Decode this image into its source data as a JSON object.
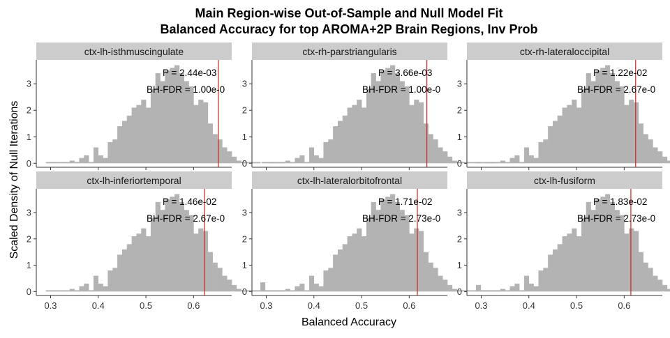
{
  "chart_data": {
    "type": "histogram",
    "title": [
      "Main Region-wise Out-of-Sample and Null Model Fit",
      "Balanced Accuracy for top AROMA+2P Brain Regions, Inv Prob"
    ],
    "xlabel": "Balanced Accuracy",
    "ylabel": "Scaled Density of Null Iterations",
    "xlim": [
      0.27,
      0.68
    ],
    "ylim": [
      -0.15,
      3.9
    ],
    "x_ticks": [
      0.3,
      0.4,
      0.5,
      0.6
    ],
    "x_tick_labels": [
      "0.3",
      "0.4",
      "0.5",
      "0.6"
    ],
    "y_ticks": [
      0,
      1,
      2,
      3
    ],
    "y_tick_labels": [
      "0",
      "1",
      "2",
      "3"
    ],
    "grid": false,
    "bar_color": "#b3b3b3",
    "line_color": "#cc2222",
    "strip_color": "#cccccc",
    "bin_start": 0.29,
    "bin_width": 0.01,
    "null_density": [
      0.05,
      0.05,
      0.05,
      0.05,
      0.05,
      0.1,
      0.05,
      0.2,
      0.3,
      0.05,
      0.6,
      0.3,
      0.2,
      0.8,
      0.9,
      1.4,
      1.6,
      1.8,
      2.1,
      2.2,
      2.4,
      2.1,
      2.8,
      3.4,
      3.1,
      3.5,
      3.6,
      3.7,
      3.4,
      3.1,
      2.9,
      2.2,
      2.4,
      2.3,
      1.5,
      1.1,
      0.9,
      0.6,
      0.45,
      0.25,
      0.1,
      0.05,
      0.05,
      0.05,
      0.05
    ],
    "panels": [
      {
        "label": "ctx-lh-isthmuscingulate",
        "observed": 0.652,
        "p_text": "P = 2.44e-03",
        "fdr_text": "BH-FDR = 1.00e-0",
        "tail": [
          0,
          0,
          0.05,
          0.05,
          0.05
        ]
      },
      {
        "label": "ctx-rh-parstriangularis",
        "observed": 0.637,
        "p_text": "P = 3.66e-03",
        "fdr_text": "BH-FDR = 1.00e-0",
        "tail": [
          0.05,
          0,
          0.05,
          0.05,
          0
        ]
      },
      {
        "label": "ctx-rh-lateraloccipital",
        "observed": 0.624,
        "p_text": "P = 1.22e-02",
        "fdr_text": "BH-FDR = 2.67e-0",
        "tail": [
          0.3,
          0.05,
          0.05,
          0.05,
          0.05
        ]
      },
      {
        "label": "ctx-lh-inferiortemporal",
        "observed": 0.623,
        "p_text": "P = 1.46e-02",
        "fdr_text": "BH-FDR = 2.67e-0",
        "tail": [
          0.35,
          0.05,
          0.05,
          0.05,
          0.05
        ]
      },
      {
        "label": "ctx-lh-lateralorbitofrontal",
        "observed": 0.617,
        "p_text": "P = 1.71e-02",
        "fdr_text": "BH-FDR = 2.73e-0",
        "tail": [
          0.25,
          0.05,
          0.05,
          0.05,
          0.05
        ]
      },
      {
        "label": "ctx-lh-fusiform",
        "observed": 0.614,
        "p_text": "P = 1.83e-02",
        "fdr_text": "BH-FDR = 2.73e-0",
        "tail": [
          0.2,
          0.05,
          0.05,
          0.05,
          0.05
        ]
      }
    ]
  }
}
